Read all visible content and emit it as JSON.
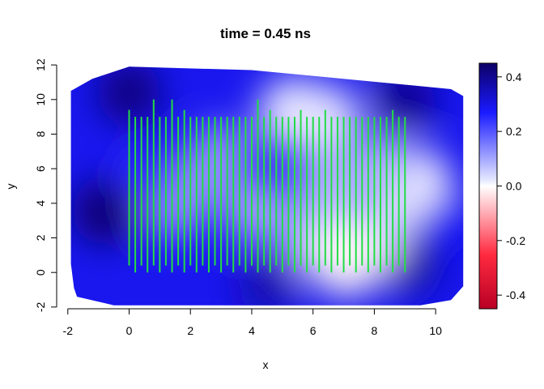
{
  "chart_data": {
    "type": "heatmap",
    "title": "time = 0.45 ns",
    "xlabel": "x",
    "ylabel": "y",
    "xlim": [
      -2.1,
      11.0
    ],
    "ylim": [
      -2.1,
      12.1
    ],
    "x_ticks": [
      -2,
      0,
      2,
      4,
      6,
      8,
      10
    ],
    "y_ticks": [
      -2,
      0,
      2,
      4,
      6,
      8,
      10,
      12
    ],
    "colorbar": {
      "range": [
        -0.45,
        0.45
      ],
      "ticks": [
        -0.4,
        -0.2,
        0.0,
        0.2,
        0.4
      ],
      "tick_labels": [
        "-0.4",
        "-0.2",
        "0.0",
        "0.2",
        "0.4"
      ],
      "low_color": "#b80024",
      "mid_color": "#ffffff",
      "high_color": "#0d0066",
      "mid_high_color": "#1a1aff"
    },
    "field_domain": {
      "outline": [
        [
          -1.8,
          -0.9
        ],
        [
          -1.7,
          -1.4
        ],
        [
          -0.5,
          -1.9
        ],
        [
          9.5,
          -1.9
        ],
        [
          10.5,
          -1.6
        ],
        [
          10.9,
          -0.8
        ],
        [
          10.9,
          10.2
        ],
        [
          10.5,
          10.6
        ],
        [
          4.0,
          11.7
        ],
        [
          0.0,
          11.9
        ],
        [
          -1.2,
          11.2
        ],
        [
          -1.9,
          10.5
        ],
        [
          -1.9,
          0.5
        ]
      ]
    },
    "field_features": [
      {
        "x": 0.0,
        "y": 10.4,
        "value": 0.42
      },
      {
        "x": -0.8,
        "y": 3.5,
        "value": 0.44
      },
      {
        "x": 4.5,
        "y": -0.8,
        "value": 0.36
      },
      {
        "x": 9.0,
        "y": 10.0,
        "value": 0.4
      },
      {
        "x": 9.2,
        "y": 0.5,
        "value": 0.38
      },
      {
        "x": 5.4,
        "y": 9.2,
        "value": 0.02
      },
      {
        "x": 6.4,
        "y": 8.8,
        "value": 0.03
      },
      {
        "x": 6.3,
        "y": 1.8,
        "value": 0.05
      },
      {
        "x": 8.0,
        "y": 2.0,
        "value": 0.06
      },
      {
        "x": 9.3,
        "y": 5.0,
        "value": 0.0
      },
      {
        "x": 7.1,
        "y": 0.8,
        "value": -0.02
      },
      {
        "x": 8.4,
        "y": 6.0,
        "value": 0.08
      },
      {
        "x": 2.2,
        "y": 5.2,
        "value": 0.12
      },
      {
        "x": 1.5,
        "y": 3.8,
        "value": 0.12
      },
      {
        "x": 4.2,
        "y": 3.5,
        "value": 0.1
      },
      {
        "x": 6.5,
        "y": 4.8,
        "value": 0.08
      },
      {
        "x": 3.0,
        "y": 6.8,
        "value": 0.12
      },
      {
        "x": 0.6,
        "y": 5.5,
        "value": 0.22
      },
      {
        "x": 10.3,
        "y": 3.0,
        "value": 0.26
      }
    ],
    "segments": {
      "color": "#22dd44",
      "x": [
        0.0,
        0.2,
        0.4,
        0.6,
        0.8,
        1.0,
        1.2,
        1.4,
        1.6,
        1.8,
        2.0,
        2.2,
        2.4,
        2.6,
        2.8,
        3.0,
        3.2,
        3.4,
        3.6,
        3.8,
        4.0,
        4.2,
        4.4,
        4.6,
        4.8,
        5.0,
        5.2,
        5.4,
        5.6,
        5.8,
        6.0,
        6.2,
        6.4,
        6.6,
        6.8,
        7.0,
        7.2,
        7.4,
        7.6,
        7.8,
        8.0,
        8.2,
        8.4,
        8.6,
        8.8,
        9.0
      ],
      "y0": [
        0.4,
        0.0,
        0.4,
        0.0,
        0.4,
        0.0,
        0.4,
        0.0,
        0.4,
        0.0,
        0.4,
        0.0,
        0.4,
        0.0,
        0.4,
        0.0,
        0.4,
        0.0,
        0.4,
        0.0,
        0.4,
        0.0,
        0.4,
        0.0,
        0.4,
        0.0,
        0.4,
        0.0,
        0.4,
        0.0,
        0.4,
        0.0,
        0.4,
        0.0,
        0.4,
        0.0,
        0.4,
        0.0,
        0.4,
        0.0,
        0.4,
        0.0,
        0.4,
        0.0,
        0.4,
        0.0
      ],
      "y1": [
        9.4,
        9.0,
        9.0,
        9.0,
        10.0,
        9.0,
        9.0,
        10.0,
        9.0,
        9.4,
        9.0,
        9.0,
        9.0,
        9.0,
        9.0,
        9.0,
        9.0,
        9.0,
        9.0,
        9.0,
        9.0,
        10.0,
        9.0,
        9.4,
        9.0,
        9.0,
        9.0,
        9.0,
        9.4,
        9.0,
        9.0,
        9.0,
        9.4,
        9.0,
        9.0,
        9.0,
        9.0,
        9.0,
        9.0,
        9.0,
        9.0,
        9.0,
        9.0,
        9.4,
        9.0,
        9.0
      ]
    }
  }
}
